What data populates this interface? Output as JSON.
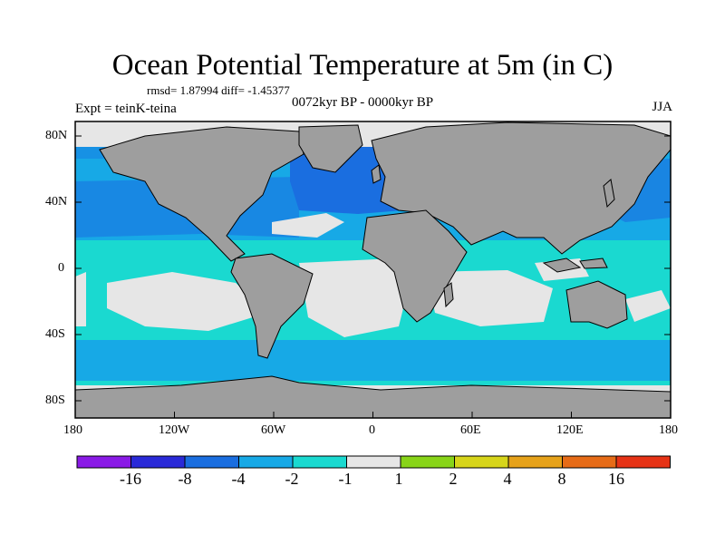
{
  "title": "Ocean Potential Temperature at 5m (in C)",
  "stats": "rmsd= 1.87994 diff= -1.45377",
  "experiment": "Expt = teinK-teina",
  "period": "0072kyr BP - 0000kyr BP",
  "season": "JJA",
  "lat_ticks": [
    "80N",
    "40N",
    "0",
    "40S",
    "80S"
  ],
  "lon_ticks": [
    "180",
    "120W",
    "60W",
    "0",
    "60E",
    "120E",
    "180"
  ],
  "colorbar": {
    "colors": [
      "#8a1ae6",
      "#2a2ad8",
      "#1a6ee0",
      "#17a9e6",
      "#1ad9d0",
      "#e6e6e6",
      "#88d418",
      "#d7d51a",
      "#e6a21a",
      "#e66b17",
      "#e63316"
    ],
    "labels": [
      "-16",
      "-8",
      "-4",
      "-2",
      "-1",
      "1",
      "2",
      "4",
      "8",
      "16"
    ]
  },
  "colors": {
    "land": "#9e9e9e",
    "ocean_light": "#1ad9d0",
    "ocean_mid": "#17a9e6",
    "ocean_dark": "#1a6ee0",
    "neutral": "#e6e6e6"
  }
}
